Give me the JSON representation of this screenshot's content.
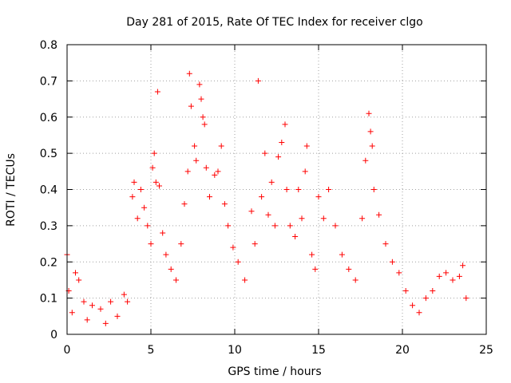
{
  "chart_data": {
    "type": "scatter",
    "title": "Day 281 of 2015, Rate Of TEC Index for receiver clgo",
    "xlabel": "GPS time / hours",
    "ylabel": "ROTI / TECUs",
    "xlim": [
      0,
      25
    ],
    "ylim": [
      0,
      0.8
    ],
    "x_ticks": [
      0,
      5,
      10,
      15,
      20,
      25
    ],
    "y_ticks": [
      0,
      0.1,
      0.2,
      0.3,
      0.4,
      0.5,
      0.6,
      0.7,
      0.8
    ],
    "x_tick_labels": [
      "0",
      "5",
      "10",
      "15",
      "20",
      "25"
    ],
    "y_tick_labels": [
      "0",
      "0.1",
      "0.2",
      "0.3",
      "0.4",
      "0.5",
      "0.6",
      "0.7",
      "0.8"
    ],
    "grid": true,
    "marker": "+",
    "color": "#ff0000",
    "series": [
      {
        "name": "ROTI",
        "points": [
          [
            0.0,
            0.22
          ],
          [
            0.1,
            0.12
          ],
          [
            0.3,
            0.06
          ],
          [
            0.5,
            0.17
          ],
          [
            0.7,
            0.15
          ],
          [
            1.0,
            0.09
          ],
          [
            1.2,
            0.04
          ],
          [
            1.5,
            0.08
          ],
          [
            2.0,
            0.07
          ],
          [
            2.3,
            0.03
          ],
          [
            2.6,
            0.09
          ],
          [
            3.0,
            0.05
          ],
          [
            3.4,
            0.11
          ],
          [
            3.6,
            0.09
          ],
          [
            3.9,
            0.38
          ],
          [
            4.0,
            0.42
          ],
          [
            4.2,
            0.32
          ],
          [
            4.4,
            0.4
          ],
          [
            4.6,
            0.35
          ],
          [
            4.8,
            0.3
          ],
          [
            5.0,
            0.25
          ],
          [
            5.1,
            0.46
          ],
          [
            5.2,
            0.5
          ],
          [
            5.3,
            0.42
          ],
          [
            5.4,
            0.67
          ],
          [
            5.5,
            0.41
          ],
          [
            5.7,
            0.28
          ],
          [
            5.9,
            0.22
          ],
          [
            6.2,
            0.18
          ],
          [
            6.5,
            0.15
          ],
          [
            6.8,
            0.25
          ],
          [
            7.0,
            0.36
          ],
          [
            7.2,
            0.45
          ],
          [
            7.3,
            0.72
          ],
          [
            7.4,
            0.63
          ],
          [
            7.6,
            0.52
          ],
          [
            7.7,
            0.48
          ],
          [
            7.9,
            0.69
          ],
          [
            8.0,
            0.65
          ],
          [
            8.1,
            0.6
          ],
          [
            8.2,
            0.58
          ],
          [
            8.3,
            0.46
          ],
          [
            8.5,
            0.38
          ],
          [
            8.8,
            0.44
          ],
          [
            9.0,
            0.45
          ],
          [
            9.2,
            0.52
          ],
          [
            9.4,
            0.36
          ],
          [
            9.6,
            0.3
          ],
          [
            9.9,
            0.24
          ],
          [
            10.2,
            0.2
          ],
          [
            10.6,
            0.15
          ],
          [
            11.0,
            0.34
          ],
          [
            11.2,
            0.25
          ],
          [
            11.4,
            0.7
          ],
          [
            11.6,
            0.38
          ],
          [
            11.8,
            0.5
          ],
          [
            12.0,
            0.33
          ],
          [
            12.2,
            0.42
          ],
          [
            12.4,
            0.3
          ],
          [
            12.6,
            0.49
          ],
          [
            12.8,
            0.53
          ],
          [
            13.0,
            0.58
          ],
          [
            13.1,
            0.4
          ],
          [
            13.3,
            0.3
          ],
          [
            13.6,
            0.27
          ],
          [
            13.8,
            0.4
          ],
          [
            14.0,
            0.32
          ],
          [
            14.2,
            0.45
          ],
          [
            14.3,
            0.52
          ],
          [
            14.6,
            0.22
          ],
          [
            14.8,
            0.18
          ],
          [
            15.0,
            0.38
          ],
          [
            15.3,
            0.32
          ],
          [
            15.6,
            0.4
          ],
          [
            16.0,
            0.3
          ],
          [
            16.4,
            0.22
          ],
          [
            16.8,
            0.18
          ],
          [
            17.2,
            0.15
          ],
          [
            17.6,
            0.32
          ],
          [
            17.8,
            0.48
          ],
          [
            18.0,
            0.61
          ],
          [
            18.1,
            0.56
          ],
          [
            18.2,
            0.52
          ],
          [
            18.3,
            0.4
          ],
          [
            18.6,
            0.33
          ],
          [
            19.0,
            0.25
          ],
          [
            19.4,
            0.2
          ],
          [
            19.8,
            0.17
          ],
          [
            20.2,
            0.12
          ],
          [
            20.6,
            0.08
          ],
          [
            21.0,
            0.06
          ],
          [
            21.4,
            0.1
          ],
          [
            21.8,
            0.12
          ],
          [
            22.2,
            0.16
          ],
          [
            22.6,
            0.17
          ],
          [
            23.0,
            0.15
          ],
          [
            23.4,
            0.16
          ],
          [
            23.6,
            0.19
          ],
          [
            23.8,
            0.1
          ]
        ]
      }
    ]
  }
}
